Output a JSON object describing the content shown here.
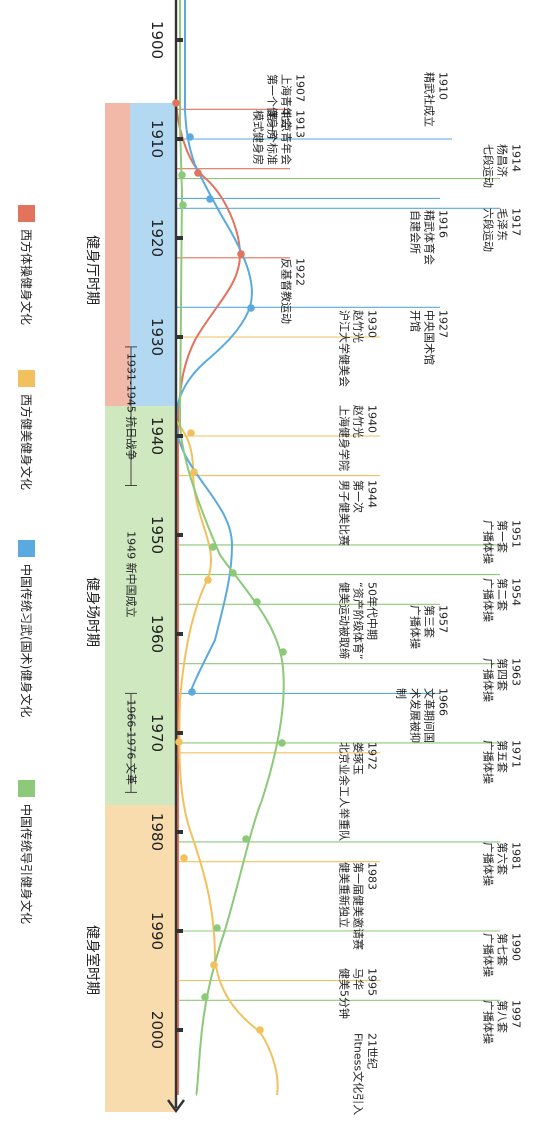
{
  "years": [
    "1900",
    "1910",
    "1920",
    "1930",
    "1940",
    "1950",
    "1960",
    "1970",
    "1980",
    "1990",
    "2000"
  ],
  "periods": [
    {
      "label": "健身厅时期",
      "color": "#f2b8a8"
    },
    {
      "label": "健身场时期",
      "color": "#cfe8c0"
    },
    {
      "label": "健身室时期",
      "color": "#f9dcae"
    }
  ],
  "legend": [
    {
      "label": "西方体操健身文化",
      "color": "#e2735d"
    },
    {
      "label": "西方健美健身文化",
      "color": "#f2c15e"
    },
    {
      "label": "中国传统习武(国术)健身文化",
      "color": "#5aaae0"
    },
    {
      "label": "中国传统导引健身文化",
      "color": "#8cc978"
    }
  ],
  "spans": [
    {
      "label": "1931-1945 抗日战争"
    },
    {
      "label": "1949 新中国成立"
    },
    {
      "label": "1966-1976 文革"
    }
  ],
  "events": [
    {
      "year": "1907",
      "lines": [
        "上海青年会",
        "第一个健身房"
      ]
    },
    {
      "year": "1910",
      "lines": [
        "精武社成立"
      ]
    },
    {
      "year": "1913",
      "lines": [
        "北京青年会",
        "第一个标准",
        "模式健身房"
      ]
    },
    {
      "year": "1914",
      "lines": [
        "杨昌济",
        "七段运动"
      ]
    },
    {
      "year": "1916",
      "lines": [
        "精武体育会",
        "自建会所"
      ]
    },
    {
      "year": "1917",
      "lines": [
        "毛泽东",
        "六段运动"
      ]
    },
    {
      "year": "1922",
      "lines": [
        "反基督教运动"
      ]
    },
    {
      "year": "1927",
      "lines": [
        "中央国术馆",
        "开馆"
      ]
    },
    {
      "year": "1930",
      "lines": [
        "赵竹光",
        "沪江大学健美会"
      ]
    },
    {
      "year": "1940",
      "lines": [
        "赵竹光",
        "上海健身学院"
      ]
    },
    {
      "year": "1944",
      "lines": [
        "第一次",
        "男子健美比赛"
      ]
    },
    {
      "year": "1951",
      "lines": [
        "第一套",
        "广播体操"
      ]
    },
    {
      "year": "1954",
      "lines": [
        "第二套",
        "广播体操"
      ]
    },
    {
      "year": "1957",
      "lines": [
        "第三套",
        "广播体操"
      ]
    },
    {
      "year": "50年代中期",
      "lines": [
        "“资产阶级体育”",
        "健美运动被取缔"
      ]
    },
    {
      "year": "1963",
      "lines": [
        "第四套",
        "广播体操"
      ]
    },
    {
      "year": "1966",
      "lines": [
        "文革期间国",
        "术发展被抑",
        "制"
      ]
    },
    {
      "year": "1971",
      "lines": [
        "第五套",
        "广播体操"
      ]
    },
    {
      "year": "1972",
      "lines": [
        "娄琢玉",
        "北京业余工人举重队"
      ]
    },
    {
      "year": "1981",
      "lines": [
        "第六套",
        "广播体操"
      ]
    },
    {
      "year": "1983",
      "lines": [
        "第一届健美邀请赛",
        "健美重新独立"
      ]
    },
    {
      "year": "1990",
      "lines": [
        "第七套",
        "广播体操"
      ]
    },
    {
      "year": "1995",
      "lines": [
        "马华",
        "健美5分钟"
      ]
    },
    {
      "year": "1997",
      "lines": [
        "第八套",
        "广播体操"
      ]
    },
    {
      "year": "21世纪",
      "lines": [
        "Fitness文化引入"
      ]
    }
  ]
}
